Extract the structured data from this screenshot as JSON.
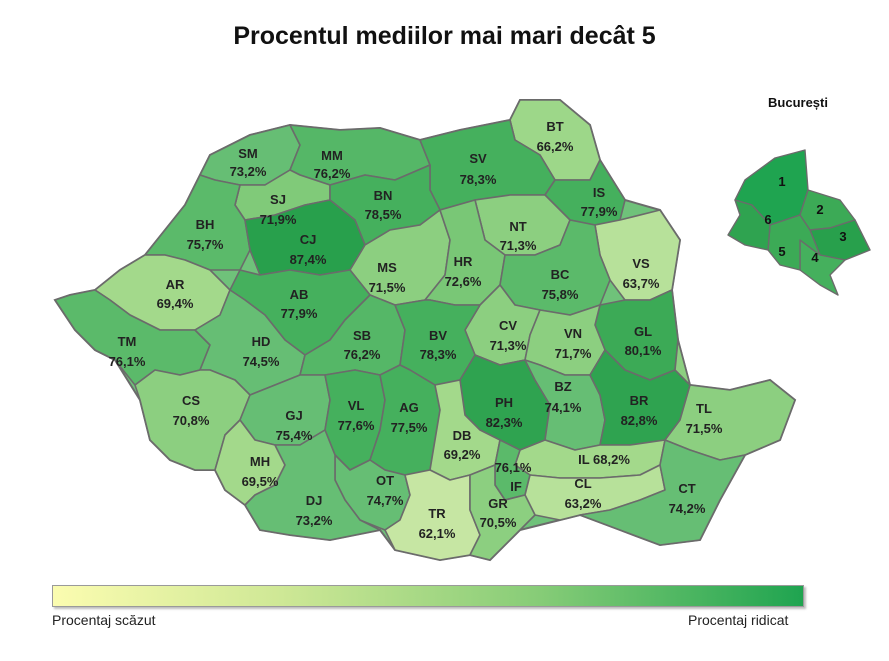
{
  "title": "Procentul mediilor mai mari decât 5",
  "inset_title": "București",
  "legend": {
    "low_label": "Procentaj scăzut",
    "high_label": "Procentaj ridicat",
    "color_low": "#fbfcb0",
    "color_high": "#1fa450"
  },
  "counties": [
    {
      "code": "SM",
      "value": "73,2%"
    },
    {
      "code": "MM",
      "value": "76,2%"
    },
    {
      "code": "BT",
      "value": "66,2%"
    },
    {
      "code": "SV",
      "value": "78,3%"
    },
    {
      "code": "SJ",
      "value": "71,9%"
    },
    {
      "code": "BN",
      "value": "78,5%"
    },
    {
      "code": "IS",
      "value": "77,9%"
    },
    {
      "code": "BH",
      "value": "75,7%"
    },
    {
      "code": "CJ",
      "value": "87,4%"
    },
    {
      "code": "NT",
      "value": "71,3%"
    },
    {
      "code": "VS",
      "value": "63,7%"
    },
    {
      "code": "AR",
      "value": "69,4%"
    },
    {
      "code": "MS",
      "value": "71,5%"
    },
    {
      "code": "HR",
      "value": "72,6%"
    },
    {
      "code": "BC",
      "value": "75,8%"
    },
    {
      "code": "AB",
      "value": "77,9%"
    },
    {
      "code": "CV",
      "value": "71,3%"
    },
    {
      "code": "GL",
      "value": "80,1%"
    },
    {
      "code": "TM",
      "value": "76,1%"
    },
    {
      "code": "HD",
      "value": "74,5%"
    },
    {
      "code": "SB",
      "value": "76,2%"
    },
    {
      "code": "BV",
      "value": "78,3%"
    },
    {
      "code": "VN",
      "value": "71,7%"
    },
    {
      "code": "CS",
      "value": "70,8%"
    },
    {
      "code": "GJ",
      "value": "75,4%"
    },
    {
      "code": "VL",
      "value": "77,6%"
    },
    {
      "code": "AG",
      "value": "77,5%"
    },
    {
      "code": "PH",
      "value": "82,3%"
    },
    {
      "code": "BZ",
      "value": "74,1%"
    },
    {
      "code": "BR",
      "value": "82,8%"
    },
    {
      "code": "TL",
      "value": "71,5%"
    },
    {
      "code": "DB",
      "value": "69,2%"
    },
    {
      "code": "MH",
      "value": "69,5%"
    },
    {
      "code": "IL",
      "value": "68,2%"
    },
    {
      "code": "IF",
      "value": ""
    },
    {
      "code": "IF_value",
      "value": "76,1%"
    },
    {
      "code": "OT",
      "value": "74,7%"
    },
    {
      "code": "DJ",
      "value": "73,2%"
    },
    {
      "code": "CL",
      "value": "63,2%"
    },
    {
      "code": "CT",
      "value": "74,2%"
    },
    {
      "code": "TR",
      "value": "62,1%"
    },
    {
      "code": "GR",
      "value": "70,5%"
    }
  ],
  "sectors": [
    {
      "label": "1"
    },
    {
      "label": "2"
    },
    {
      "label": "3"
    },
    {
      "label": "4"
    },
    {
      "label": "5"
    },
    {
      "label": "6"
    }
  ]
}
